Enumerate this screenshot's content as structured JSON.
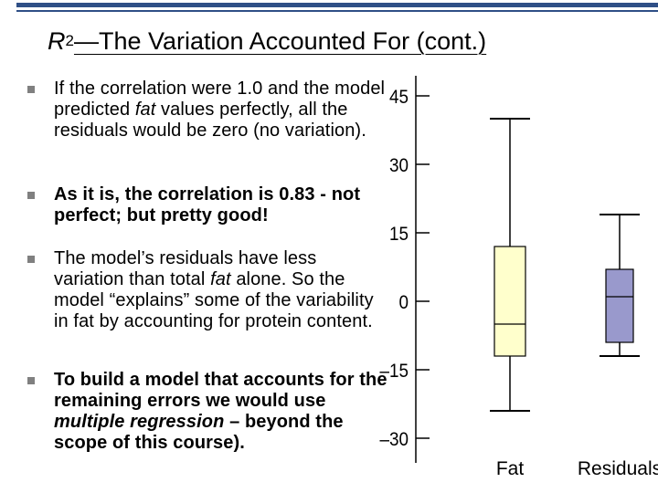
{
  "slide": {
    "title_r": "R",
    "title_sup": "2",
    "title_rest": "—The Variation Accounted For (cont.)",
    "bullets": [
      {
        "segments": [
          {
            "t": "If the correlation were 1.0 and the model predicted "
          },
          {
            "t": "fat",
            "i": true
          },
          {
            "t": " values perfectly, all the residuals would be zero (no variation)."
          }
        ],
        "bold": false
      },
      {
        "segments": [
          {
            "t": "As it is, the correlation is 0.83 - not perfect; but pretty good!"
          }
        ],
        "bold": true
      },
      {
        "segments": [
          {
            "t": "The model’s residuals have less variation than total "
          },
          {
            "t": "fat",
            "i": true
          },
          {
            "t": " alone.  So the model “explains” some of the variability in fat by accounting for protein content."
          }
        ],
        "bold": false
      },
      {
        "segments": [
          {
            "t": "To build a model that accounts for the remaining errors we would use "
          },
          {
            "t": "multiple regression",
            "i": true
          },
          {
            "t": " – beyond the scope of this course)."
          }
        ],
        "bold": true
      }
    ]
  },
  "chart_data": {
    "type": "boxplot",
    "title": "",
    "xlabel": "",
    "ylabel": "",
    "ylim": [
      -33,
      47
    ],
    "yticks": [
      {
        "value": 45,
        "label": "45"
      },
      {
        "value": 30,
        "label": "30"
      },
      {
        "value": 15,
        "label": "15"
      },
      {
        "value": 0,
        "label": "0"
      },
      {
        "value": -15,
        "label": "–15"
      },
      {
        "value": -30,
        "label": "–30"
      }
    ],
    "categories": [
      "Fat",
      "Residuals"
    ],
    "boxes": [
      {
        "name": "Fat",
        "min": -24,
        "q1": -12,
        "median": -5,
        "q3": 12,
        "max": 40,
        "color": "#ffffcc"
      },
      {
        "name": "Residuals",
        "min": -12,
        "q1": -9,
        "median": 1,
        "q3": 7,
        "max": 19,
        "color": "#9999cc"
      }
    ],
    "grid": false
  }
}
